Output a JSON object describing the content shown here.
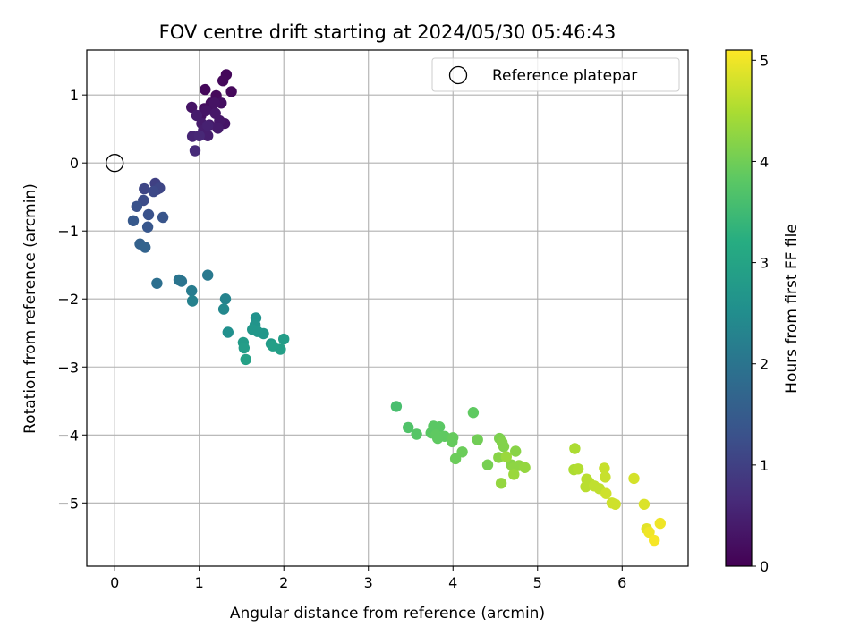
{
  "chart_data": {
    "type": "scatter",
    "title": "FOV centre drift starting at 2024/05/30 05:46:43",
    "xlabel": "Angular distance from reference (arcmin)",
    "ylabel": "Rotation from reference (arcmin)",
    "xlim": [
      -0.33,
      6.78
    ],
    "ylim": [
      -5.93,
      1.66
    ],
    "xticks": [
      0,
      1,
      2,
      3,
      4,
      5,
      6
    ],
    "yticks": [
      1,
      0,
      -1,
      -2,
      -3,
      -4,
      -5
    ],
    "xtick_labels": [
      "0",
      "1",
      "2",
      "3",
      "4",
      "5",
      "6"
    ],
    "ytick_labels": [
      "1",
      "0",
      "−1",
      "−2",
      "−3",
      "−4",
      "−5"
    ],
    "grid": true,
    "legend": {
      "position": "top-right",
      "entries": [
        "Reference platepar"
      ]
    },
    "reference_point": {
      "x": 0.0,
      "y": 0.0
    },
    "colorbar": {
      "label": "Hours from first FF file",
      "colormap": "viridis",
      "range": [
        0,
        5.1
      ],
      "ticks": [
        0,
        1,
        2,
        3,
        4,
        5
      ],
      "tick_labels": [
        "0",
        "1",
        "2",
        "3",
        "4",
        "5"
      ]
    },
    "series": [
      {
        "x": [
          1.07,
          1.32,
          1.2,
          1.38,
          1.14,
          1.06,
          1.15,
          1.26,
          1.02,
          1.08,
          1.3,
          0.91,
          1.19,
          1.24,
          1.03,
          1.12,
          0.97,
          1.22,
          1.05,
          1.1,
          1.28,
          1.18,
          0.92,
          1.0,
          1.1,
          0.95,
          0.48,
          0.5,
          0.35,
          0.53,
          0.34,
          0.46,
          0.26,
          0.4,
          0.57,
          0.22,
          0.39,
          0.3,
          0.36,
          0.5,
          0.76,
          0.79,
          1.1,
          0.91,
          0.92,
          1.31,
          1.29,
          1.34,
          1.67,
          1.66,
          1.63,
          1.76,
          1.69,
          1.52,
          1.85,
          2.0,
          1.53,
          1.96,
          1.87,
          1.55,
          3.33,
          3.47,
          3.57,
          3.77,
          3.84,
          3.74,
          3.8,
          3.9,
          3.82,
          4.0,
          3.99,
          4.11,
          4.03,
          4.24,
          4.29,
          4.41,
          4.55,
          4.58,
          4.6,
          4.54,
          4.69,
          4.74,
          4.72,
          4.78,
          4.85,
          4.57,
          4.72,
          4.63,
          5.44,
          5.43,
          5.48,
          5.58,
          5.57,
          5.61,
          5.67,
          5.73,
          5.79,
          5.8,
          5.88,
          5.92,
          5.81,
          6.14,
          6.26,
          6.29,
          6.32,
          6.45,
          6.38
        ],
        "y": [
          1.08,
          1.3,
          0.99,
          1.05,
          0.88,
          0.8,
          0.78,
          0.88,
          0.7,
          0.77,
          0.58,
          0.82,
          0.73,
          0.62,
          0.58,
          0.56,
          0.7,
          0.51,
          0.48,
          0.4,
          1.21,
          0.88,
          0.39,
          0.4,
          0.55,
          0.18,
          -0.3,
          -0.39,
          -0.38,
          -0.37,
          -0.55,
          -0.42,
          -0.64,
          -0.76,
          -0.8,
          -0.85,
          -0.94,
          -1.19,
          -1.24,
          -1.77,
          -1.72,
          -1.74,
          -1.65,
          -1.88,
          -2.03,
          -2.0,
          -2.15,
          -2.49,
          -2.28,
          -2.38,
          -2.45,
          -2.51,
          -2.48,
          -2.64,
          -2.66,
          -2.59,
          -2.72,
          -2.74,
          -2.69,
          -2.89,
          -3.58,
          -3.89,
          -3.99,
          -3.87,
          -3.88,
          -3.97,
          -4.0,
          -4.02,
          -4.05,
          -4.04,
          -4.1,
          -4.25,
          -4.35,
          -3.67,
          -4.07,
          -4.44,
          -4.05,
          -4.11,
          -4.17,
          -4.33,
          -4.44,
          -4.24,
          -4.48,
          -4.45,
          -4.48,
          -4.71,
          -4.58,
          -4.32,
          -4.2,
          -4.51,
          -4.5,
          -4.65,
          -4.76,
          -4.7,
          -4.75,
          -4.79,
          -4.49,
          -4.62,
          -5.0,
          -5.02,
          -4.86,
          -4.64,
          -5.02,
          -5.38,
          -5.43,
          -5.3,
          -5.55
        ],
        "c": [
          0.1,
          0.1,
          0.12,
          0.12,
          0.18,
          0.2,
          0.25,
          0.22,
          0.25,
          0.3,
          0.3,
          0.3,
          0.35,
          0.35,
          0.4,
          0.38,
          0.42,
          0.4,
          0.45,
          0.45,
          0.12,
          0.28,
          0.55,
          0.6,
          0.5,
          0.65,
          1.0,
          1.05,
          1.1,
          1.1,
          1.2,
          1.15,
          1.3,
          1.3,
          1.35,
          1.45,
          1.4,
          1.6,
          1.65,
          1.9,
          2.0,
          2.0,
          2.1,
          2.15,
          2.25,
          2.3,
          2.4,
          2.55,
          2.6,
          2.65,
          2.7,
          2.7,
          2.7,
          2.8,
          2.8,
          2.85,
          2.85,
          2.9,
          2.9,
          2.95,
          3.6,
          3.7,
          3.75,
          3.8,
          3.8,
          3.8,
          3.85,
          3.85,
          3.85,
          3.9,
          3.9,
          3.95,
          3.95,
          3.85,
          4.0,
          4.05,
          4.1,
          4.15,
          4.15,
          4.2,
          4.2,
          4.2,
          4.25,
          4.25,
          4.3,
          4.3,
          4.35,
          4.35,
          4.5,
          4.5,
          4.55,
          4.6,
          4.6,
          4.6,
          4.65,
          4.65,
          4.7,
          4.7,
          4.75,
          4.75,
          4.75,
          4.8,
          4.85,
          4.9,
          5.0,
          5.0,
          5.05
        ]
      }
    ]
  }
}
